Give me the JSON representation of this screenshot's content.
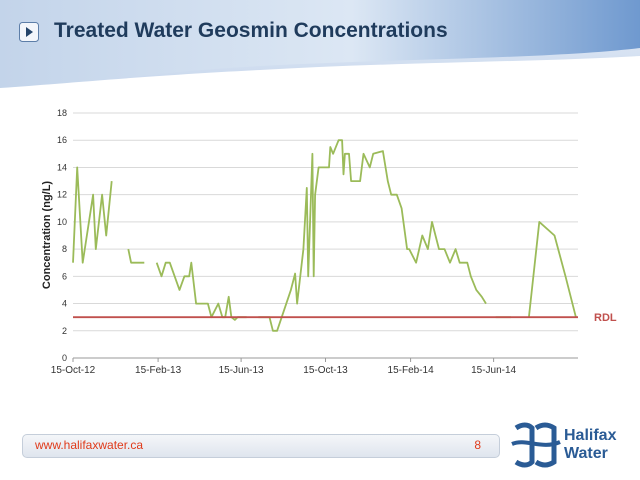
{
  "slide": {
    "title": "Treated Water Geosmin Concentrations",
    "footer_url": "www.halifaxwater.ca",
    "page_number": "8",
    "logo_line1": "Halifax",
    "logo_line2": "Water"
  },
  "colors": {
    "series": "#9bbb59",
    "rdl": "#c0504d",
    "title": "#1f3b5c",
    "footer_text": "#e03a1a",
    "logo": "#2a5b95"
  },
  "chart_data": {
    "type": "line",
    "title": "",
    "xlabel": "",
    "ylabel": "Concentration (ng/L)",
    "ylim": [
      0,
      18
    ],
    "yticks": [
      0,
      2,
      4,
      6,
      8,
      10,
      12,
      14,
      16,
      18
    ],
    "xlim": [
      "2012-10-15",
      "2014-10-15"
    ],
    "xticks": [
      {
        "date": "2012-10-15",
        "label": "15-Oct-12"
      },
      {
        "date": "2013-02-15",
        "label": "15-Feb-13"
      },
      {
        "date": "2013-06-15",
        "label": "15-Jun-13"
      },
      {
        "date": "2013-10-15",
        "label": "15-Oct-13"
      },
      {
        "date": "2014-02-15",
        "label": "15-Feb-14"
      },
      {
        "date": "2014-06-15",
        "label": "15-Jun-14"
      }
    ],
    "grid": true,
    "reference_line": {
      "label": "RDL",
      "y": 3
    },
    "series": [
      {
        "segments": [
          [
            [
              "2012-10-15",
              7
            ],
            [
              "2012-10-21",
              14
            ],
            [
              "2012-10-29",
              7
            ],
            [
              "2012-11-13",
              12
            ],
            [
              "2012-11-17",
              8
            ],
            [
              "2012-11-26",
              12
            ],
            [
              "2012-12-02",
              9
            ],
            [
              "2012-12-10",
              13
            ]
          ],
          [
            [
              "2013-01-03",
              8
            ],
            [
              "2013-01-07",
              7
            ],
            [
              "2013-01-21",
              7
            ],
            [
              "2013-01-26",
              7
            ]
          ],
          [
            [
              "2013-02-13",
              7
            ],
            [
              "2013-02-20",
              6
            ],
            [
              "2013-02-26",
              7
            ],
            [
              "2013-03-04",
              7
            ],
            [
              "2013-03-18",
              5
            ],
            [
              "2013-03-25",
              6
            ],
            [
              "2013-04-01",
              6
            ],
            [
              "2013-04-04",
              7
            ],
            [
              "2013-04-11",
              4
            ],
            [
              "2013-04-18",
              4
            ],
            [
              "2013-04-28",
              4
            ],
            [
              "2013-05-03",
              3
            ],
            [
              "2013-05-13",
              4
            ],
            [
              "2013-05-19",
              3
            ],
            [
              "2013-05-23",
              3
            ],
            [
              "2013-05-28",
              4.5
            ],
            [
              "2013-06-01",
              3
            ],
            [
              "2013-06-06",
              2.8
            ],
            [
              "2013-06-10",
              3
            ],
            [
              "2013-06-23",
              3
            ]
          ],
          [
            [
              "2013-07-10",
              3
            ],
            [
              "2013-07-26",
              3
            ],
            [
              "2013-07-31",
              2
            ],
            [
              "2013-08-06",
              2
            ],
            [
              "2013-08-26",
              5
            ],
            [
              "2013-09-01",
              6.2
            ],
            [
              "2013-09-04",
              4
            ],
            [
              "2013-09-13",
              8
            ],
            [
              "2013-09-18",
              12.5
            ],
            [
              "2013-09-20",
              6
            ],
            [
              "2013-09-26",
              15
            ],
            [
              "2013-09-28",
              6
            ],
            [
              "2013-09-30",
              12
            ],
            [
              "2013-10-05",
              14
            ],
            [
              "2013-10-12",
              14
            ],
            [
              "2013-10-20",
              14
            ],
            [
              "2013-10-22",
              15.5
            ],
            [
              "2013-10-26",
              15
            ],
            [
              "2013-11-03",
              16
            ],
            [
              "2013-11-08",
              16
            ],
            [
              "2013-11-10",
              13.5
            ],
            [
              "2013-11-12",
              15
            ],
            [
              "2013-11-18",
              15
            ],
            [
              "2013-11-21",
              13
            ],
            [
              "2013-11-25",
              13
            ],
            [
              "2013-12-04",
              13
            ],
            [
              "2013-12-09",
              15
            ],
            [
              "2013-12-18",
              14
            ],
            [
              "2013-12-23",
              15
            ],
            [
              "2014-01-06",
              15.2
            ],
            [
              "2014-01-13",
              13
            ],
            [
              "2014-01-18",
              12
            ],
            [
              "2014-01-26",
              12
            ],
            [
              "2014-02-02",
              11
            ],
            [
              "2014-02-10",
              8
            ],
            [
              "2014-02-13",
              8
            ],
            [
              "2014-02-23",
              7
            ],
            [
              "2014-03-04",
              9
            ],
            [
              "2014-03-12",
              8
            ],
            [
              "2014-03-18",
              10
            ],
            [
              "2014-03-28",
              8
            ],
            [
              "2014-04-05",
              8
            ],
            [
              "2014-04-13",
              7
            ],
            [
              "2014-04-21",
              8
            ],
            [
              "2014-04-27",
              7
            ],
            [
              "2014-05-03",
              7
            ],
            [
              "2014-05-08",
              7
            ],
            [
              "2014-05-13",
              6
            ],
            [
              "2014-05-21",
              5
            ],
            [
              "2014-05-29",
              4.5
            ],
            [
              "2014-06-04",
              4
            ]
          ],
          [
            [
              "2014-06-18",
              3
            ],
            [
              "2014-07-10",
              3
            ]
          ],
          [
            [
              "2014-08-05",
              3
            ],
            [
              "2014-08-20",
              10
            ],
            [
              "2014-09-11",
              9
            ],
            [
              "2014-09-27",
              6
            ],
            [
              "2014-10-12",
              3
            ]
          ]
        ]
      }
    ]
  }
}
